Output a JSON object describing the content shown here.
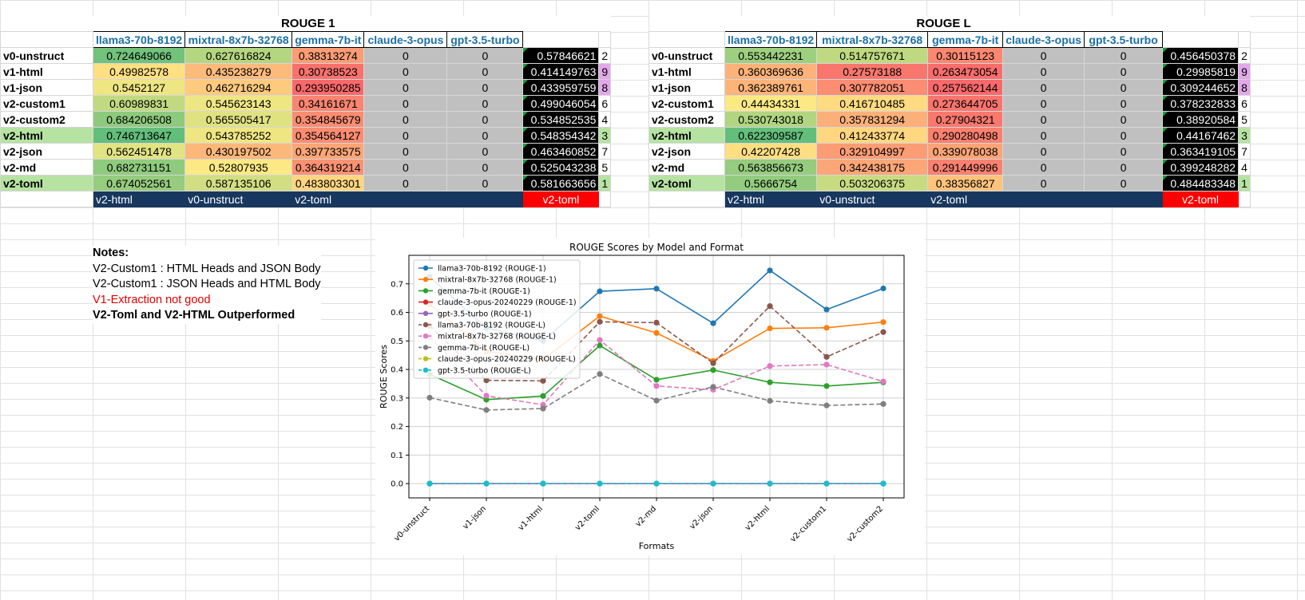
{
  "rouge1": {
    "title": "ROUGE 1",
    "headers": [
      "llama3-70b-8192",
      "mixtral-8x7b-32768",
      "gemma-7b-it",
      "claude-3-opus",
      "gpt-3.5-turbo"
    ],
    "rows": [
      {
        "label": "v0-unstruct",
        "llama": "0.724649066",
        "mixtral": "0.627616824",
        "gemma": "0.38313274",
        "claude": "0",
        "gpt": "0",
        "avg": "0.57846621",
        "rank": "2"
      },
      {
        "label": "v1-html",
        "llama": "0.49982578",
        "mixtral": "0.435238279",
        "gemma": "0.30738523",
        "claude": "0",
        "gpt": "0",
        "avg": "0.414149763",
        "rank": "9"
      },
      {
        "label": "v1-json",
        "llama": "0.5452127",
        "mixtral": "0.462716294",
        "gemma": "0.293950285",
        "claude": "0",
        "gpt": "0",
        "avg": "0.433959759",
        "rank": "8"
      },
      {
        "label": "v2-custom1",
        "llama": "0.60989831",
        "mixtral": "0.545623143",
        "gemma": "0.34161671",
        "claude": "0",
        "gpt": "0",
        "avg": "0.499046054",
        "rank": "6"
      },
      {
        "label": "v2-custom2",
        "llama": "0.684206508",
        "mixtral": "0.565505417",
        "gemma": "0.354845679",
        "claude": "0",
        "gpt": "0",
        "avg": "0.534852535",
        "rank": "4"
      },
      {
        "label": "v2-html",
        "llama": "0.746713647",
        "mixtral": "0.543785252",
        "gemma": "0.354564127",
        "claude": "0",
        "gpt": "0",
        "avg": "0.548354342",
        "rank": "3"
      },
      {
        "label": "v2-json",
        "llama": "0.562451478",
        "mixtral": "0.430197502",
        "gemma": "0.397733575",
        "claude": "0",
        "gpt": "0",
        "avg": "0.463460852",
        "rank": "7"
      },
      {
        "label": "v2-md",
        "llama": "0.682731151",
        "mixtral": "0.52807935",
        "gemma": "0.364319214",
        "claude": "0",
        "gpt": "0",
        "avg": "0.525043238",
        "rank": "5"
      },
      {
        "label": "v2-toml",
        "llama": "0.674052561",
        "mixtral": "0.587135106",
        "gemma": "0.483803301",
        "claude": "0",
        "gpt": "0",
        "avg": "0.581663656",
        "rank": "1"
      }
    ],
    "best": {
      "llama": "v2-html",
      "mixtral": "v0-unstruct",
      "gemma": "v2-toml",
      "avg": "v2-toml"
    }
  },
  "rougeL": {
    "title": "ROUGE L",
    "headers": [
      "llama3-70b-8192",
      "mixtral-8x7b-32768",
      "gemma-7b-it",
      "claude-3-opus",
      "gpt-3.5-turbo"
    ],
    "rows": [
      {
        "label": "v0-unstruct",
        "llama": "0.553442231",
        "mixtral": "0.514757671",
        "gemma": "0.30115123",
        "claude": "0",
        "gpt": "0",
        "avg": "0.456450378",
        "rank": "2"
      },
      {
        "label": "v1-html",
        "llama": "0.360369636",
        "mixtral": "0.27573188",
        "gemma": "0.263473054",
        "claude": "0",
        "gpt": "0",
        "avg": "0.29985819",
        "rank": "9"
      },
      {
        "label": "v1-json",
        "llama": "0.362389761",
        "mixtral": "0.307782051",
        "gemma": "0.257562144",
        "claude": "0",
        "gpt": "0",
        "avg": "0.309244652",
        "rank": "8"
      },
      {
        "label": "v2-custom1",
        "llama": "0.44434331",
        "mixtral": "0.416710485",
        "gemma": "0.273644705",
        "claude": "0",
        "gpt": "0",
        "avg": "0.378232833",
        "rank": "6"
      },
      {
        "label": "v2-custom2",
        "llama": "0.530743018",
        "mixtral": "0.357831294",
        "gemma": "0.27904321",
        "claude": "0",
        "gpt": "0",
        "avg": "0.38920584",
        "rank": "5"
      },
      {
        "label": "v2-html",
        "llama": "0.622309587",
        "mixtral": "0.412433774",
        "gemma": "0.290280498",
        "claude": "0",
        "gpt": "0",
        "avg": "0.44167462",
        "rank": "3"
      },
      {
        "label": "v2-json",
        "llama": "0.42207428",
        "mixtral": "0.329104997",
        "gemma": "0.339078038",
        "claude": "0",
        "gpt": "0",
        "avg": "0.363419105",
        "rank": "7"
      },
      {
        "label": "v2-md",
        "llama": "0.563856673",
        "mixtral": "0.342438175",
        "gemma": "0.291449996",
        "claude": "0",
        "gpt": "0",
        "avg": "0.399248282",
        "rank": "4"
      },
      {
        "label": "v2-toml",
        "llama": "0.5666754",
        "mixtral": "0.503206375",
        "gemma": "0.38356827",
        "claude": "0",
        "gpt": "0",
        "avg": "0.484483348",
        "rank": "1"
      }
    ],
    "best": {
      "llama": "v2-html",
      "mixtral": "v0-unstruct",
      "gemma": "v2-toml",
      "avg": "v2-toml"
    }
  },
  "notes": {
    "title": "Notes:",
    "line1": "V2-Custom1 : HTML Heads and JSON Body",
    "line2": "V2-Custom1 : JSON Heads and HTML Body",
    "line3": "V1-Extraction not good",
    "line4": "V2-Toml and V2-HTML Outperformed"
  },
  "colors": {
    "header_text": "#1a6fa5",
    "best_bar": "#17375e",
    "best_avg": "#ff0000",
    "zero_cell": "#c0c0c0",
    "highlight_row": "#b6e3a1",
    "rank_pink": "#e2a8ea",
    "scale_low": "#f8696b",
    "scale_mid": "#ffeb84",
    "scale_high": "#63be7b"
  },
  "chart_data": {
    "type": "line",
    "title": "ROUGE Scores by Model and Format",
    "xlabel": "Formats",
    "ylabel": "ROUGE Scores",
    "ylim": [
      -0.05,
      0.8
    ],
    "yticks": [
      "0.0",
      "0.1",
      "0.2",
      "0.3",
      "0.4",
      "0.5",
      "0.6",
      "0.7"
    ],
    "grid": true,
    "legend": "top-left",
    "categories": [
      "v0-unstruct",
      "v1-json",
      "v1-html",
      "v2-toml",
      "v2-md",
      "v2-json",
      "v2-html",
      "v2-custom1",
      "v2-custom2"
    ],
    "series": [
      {
        "name": "llama3-70b-8192 (ROUGE-1)",
        "color": "#1f77b4",
        "dash": false,
        "values": [
          0.725,
          0.545,
          0.5,
          0.674,
          0.683,
          0.562,
          0.747,
          0.61,
          0.684
        ]
      },
      {
        "name": "mixtral-8x7b-32768 (ROUGE-1)",
        "color": "#ff7f0e",
        "dash": false,
        "values": [
          0.628,
          0.463,
          0.435,
          0.587,
          0.528,
          0.43,
          0.544,
          0.546,
          0.566
        ]
      },
      {
        "name": "gemma-7b-it (ROUGE-1)",
        "color": "#2ca02c",
        "dash": false,
        "values": [
          0.383,
          0.294,
          0.307,
          0.484,
          0.364,
          0.398,
          0.355,
          0.342,
          0.355
        ]
      },
      {
        "name": "claude-3-opus-20240229 (ROUGE-1)",
        "color": "#d62728",
        "dash": false,
        "values": [
          0,
          0,
          0,
          0,
          0,
          0,
          0,
          0,
          0
        ]
      },
      {
        "name": "gpt-3.5-turbo (ROUGE-1)",
        "color": "#9467bd",
        "dash": false,
        "values": [
          0,
          0,
          0,
          0,
          0,
          0,
          0,
          0,
          0
        ]
      },
      {
        "name": "llama3-70b-8192 (ROUGE-L)",
        "color": "#8c564b",
        "dash": true,
        "values": [
          0.553,
          0.362,
          0.36,
          0.567,
          0.564,
          0.422,
          0.622,
          0.444,
          0.531
        ]
      },
      {
        "name": "mixtral-8x7b-32768 (ROUGE-L)",
        "color": "#e377c2",
        "dash": true,
        "values": [
          0.515,
          0.308,
          0.276,
          0.503,
          0.342,
          0.329,
          0.412,
          0.417,
          0.358
        ]
      },
      {
        "name": "gemma-7b-it (ROUGE-L)",
        "color": "#7f7f7f",
        "dash": true,
        "values": [
          0.301,
          0.258,
          0.263,
          0.384,
          0.291,
          0.339,
          0.29,
          0.274,
          0.279
        ]
      },
      {
        "name": "claude-3-opus-20240229 (ROUGE-L)",
        "color": "#bcbd22",
        "dash": true,
        "values": [
          0,
          0,
          0,
          0,
          0,
          0,
          0,
          0,
          0
        ]
      },
      {
        "name": "gpt-3.5-turbo (ROUGE-L)",
        "color": "#17becf",
        "dash": true,
        "values": [
          0,
          0,
          0,
          0,
          0,
          0,
          0,
          0,
          0
        ]
      }
    ]
  }
}
